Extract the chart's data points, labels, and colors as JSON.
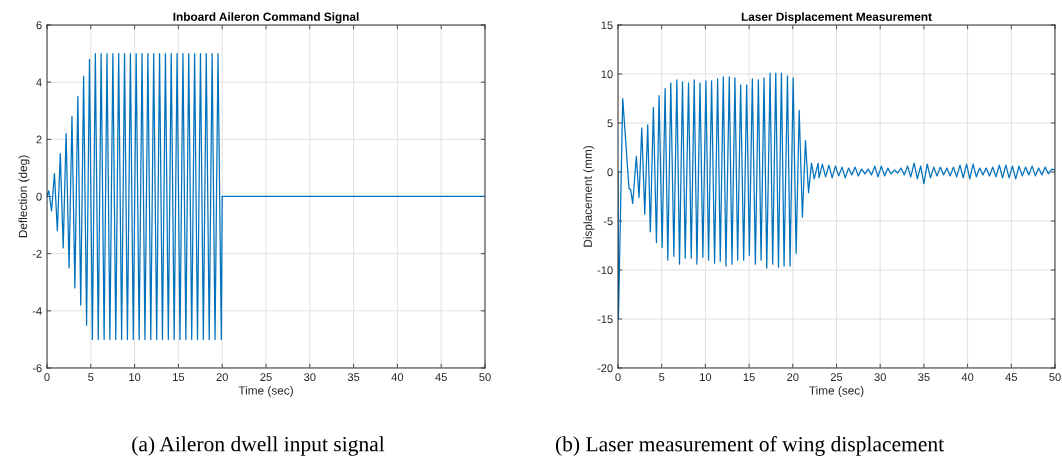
{
  "chart_data": [
    {
      "type": "line",
      "title": "Inboard Aileron Command Signal",
      "xlabel": "Time (sec)",
      "ylabel": "Deflection (deg)",
      "annotations": [
        "(a) Aileron dwell input signal"
      ],
      "xlim": [
        0,
        50
      ],
      "ylim": [
        -6,
        6
      ],
      "xticks": [
        0,
        5,
        10,
        15,
        20,
        25,
        30,
        35,
        40,
        45,
        50
      ],
      "yticks": [
        -6,
        -4,
        -2,
        0,
        2,
        4,
        6
      ],
      "grid": true,
      "marker": "none",
      "line_style": "solid",
      "series": [
        {
          "color": "#0072bd",
          "x": [
            0,
            0.2,
            0.52,
            0.85,
            1.18,
            1.52,
            1.85,
            2.18,
            2.52,
            2.85,
            3.18,
            3.52,
            3.85,
            4.18,
            4.52,
            4.85,
            5.18,
            5.52,
            5.85,
            6.18,
            6.52,
            6.85,
            7.18,
            7.52,
            7.85,
            8.18,
            8.52,
            8.85,
            9.18,
            9.52,
            9.85,
            10.18,
            10.52,
            10.85,
            11.18,
            11.52,
            11.85,
            12.18,
            12.52,
            12.85,
            13.18,
            13.52,
            13.85,
            14.18,
            14.52,
            14.85,
            15.18,
            15.52,
            15.85,
            16.18,
            16.52,
            16.85,
            17.18,
            17.52,
            17.85,
            18.18,
            18.52,
            18.85,
            19.18,
            19.52,
            19.9,
            20,
            50
          ],
          "values": [
            0,
            0.2,
            -0.5,
            0.8,
            -1.2,
            1.5,
            -1.8,
            2.2,
            -2.5,
            2.8,
            -3.2,
            3.5,
            -3.8,
            4.2,
            -4.5,
            4.8,
            -5,
            5,
            -5,
            5,
            -5,
            5,
            -5,
            5,
            -5,
            5,
            -5,
            5,
            -5,
            5,
            -5,
            5,
            -5,
            5,
            -5,
            5,
            -5,
            5,
            -5,
            5,
            -5,
            5,
            -5,
            5,
            -5,
            5,
            -5,
            5,
            -5,
            5,
            -5,
            5,
            -5,
            5,
            -5,
            5,
            -5,
            5,
            -5,
            5,
            -5,
            0,
            0
          ]
        }
      ]
    },
    {
      "type": "line",
      "title": "Laser Displacement Measurement",
      "xlabel": "Time (sec)",
      "ylabel": "Displacement (mm)",
      "annotations": [
        "(b) Laser measurement of wing displacement"
      ],
      "xlim": [
        0,
        50
      ],
      "ylim": [
        -20,
        15
      ],
      "xticks": [
        0,
        5,
        10,
        15,
        20,
        25,
        30,
        35,
        40,
        45,
        50
      ],
      "yticks": [
        -20,
        -15,
        -10,
        -5,
        0,
        5,
        10,
        15
      ],
      "grid": true,
      "marker": "none",
      "line_style": "solid",
      "series": [
        {
          "color": "#0072bd",
          "x": [
            0,
            0.05,
            0.54,
            1.26,
            1.45,
            1.68,
            2.1,
            2.41,
            2.72,
            3.06,
            3.4,
            3.7,
            4.05,
            4.4,
            4.7,
            5.05,
            5.39,
            5.7,
            6.04,
            6.39,
            6.73,
            7.04,
            7.38,
            7.69,
            8.07,
            8.38,
            8.72,
            9.03,
            9.38,
            9.71,
            10.06,
            10.36,
            10.71,
            11.05,
            11.4,
            11.7,
            12.05,
            12.35,
            12.73,
            13.04,
            13.38,
            13.69,
            14.03,
            14.38,
            14.72,
            15.03,
            15.37,
            15.72,
            16.06,
            16.37,
            16.71,
            17.02,
            17.4,
            17.7,
            18.05,
            18.36,
            18.7,
            19.0,
            19.39,
            19.69,
            20.04,
            20.38,
            20.73,
            21.1,
            21.45,
            21.8,
            22.14,
            22.45,
            22.9,
            23,
            23.38,
            23.75,
            24.13,
            24.5,
            24.88,
            25.25,
            25.63,
            26,
            26.38,
            26.75,
            27.13,
            27.5,
            27.88,
            28.25,
            28.63,
            29,
            29.38,
            29.75,
            30.13,
            30.5,
            30.88,
            31.25,
            31.63,
            32,
            32.38,
            32.75,
            33.13,
            33.5,
            33.88,
            34.25,
            34.63,
            35,
            35.38,
            35.75,
            36.13,
            36.5,
            36.88,
            37.25,
            37.63,
            38,
            38.38,
            38.75,
            39.13,
            39.5,
            39.88,
            40.25,
            40.63,
            41,
            41.38,
            41.75,
            42.13,
            42.5,
            42.88,
            43.25,
            43.63,
            44,
            44.38,
            44.75,
            45.13,
            45.5,
            45.88,
            46.25,
            46.63,
            47,
            47.38,
            47.75,
            48.13,
            48.5,
            48.88,
            49.25,
            49.63,
            50
          ],
          "values": [
            0,
            -15,
            7.5,
            -1.7,
            -1.8,
            -3.2,
            1.6,
            -2.6,
            4.5,
            -4.3,
            4.8,
            -6.1,
            6.6,
            -7.2,
            7.8,
            -7.7,
            8.5,
            -9,
            9.1,
            -8.6,
            9.4,
            -9.4,
            9.2,
            -8.8,
            9.1,
            -8.8,
            9.4,
            -9.4,
            9.1,
            -8.7,
            9.3,
            -9,
            9.3,
            -9.3,
            9.5,
            -9.1,
            9.7,
            -9.6,
            9.7,
            -9.4,
            9.6,
            -9,
            8.9,
            -9,
            8.9,
            -8.5,
            9.5,
            -9.4,
            9.4,
            -9,
            9.6,
            -9.8,
            10.1,
            -9.4,
            10.1,
            -9.7,
            10.1,
            -9.6,
            9.8,
            -9.6,
            9.6,
            -8.3,
            6.3,
            -4.6,
            3.2,
            -2.1,
            0.9,
            -0.7,
            0.9,
            -0.6,
            0.8,
            -0.5,
            0.7,
            -0.6,
            0.6,
            -0.4,
            0.5,
            -0.6,
            0.4,
            -0.3,
            0.5,
            -0.4,
            0.3,
            -0.2,
            0.3,
            -0.3,
            0.6,
            -0.5,
            0.6,
            -0.4,
            0.4,
            -0.2,
            0.2,
            -0.1,
            0.4,
            -0.3,
            0.6,
            -0.5,
            0.9,
            -0.7,
            0.6,
            -1.2,
            0.8,
            -0.6,
            0.5,
            -0.4,
            0.5,
            -0.3,
            0.4,
            -0.4,
            0.5,
            -0.5,
            0.7,
            -0.6,
            0.8,
            -0.7,
            0.8,
            -0.5,
            0.4,
            -0.3,
            0.4,
            -0.4,
            0.5,
            -0.5,
            0.7,
            -0.6,
            0.7,
            -0.6,
            0.6,
            -0.7,
            0.6,
            -0.4,
            0.5,
            -0.3,
            0.6,
            -0.4,
            0.4,
            -0.3,
            0.5,
            -0.2,
            0.3,
            0.2
          ]
        }
      ]
    }
  ]
}
